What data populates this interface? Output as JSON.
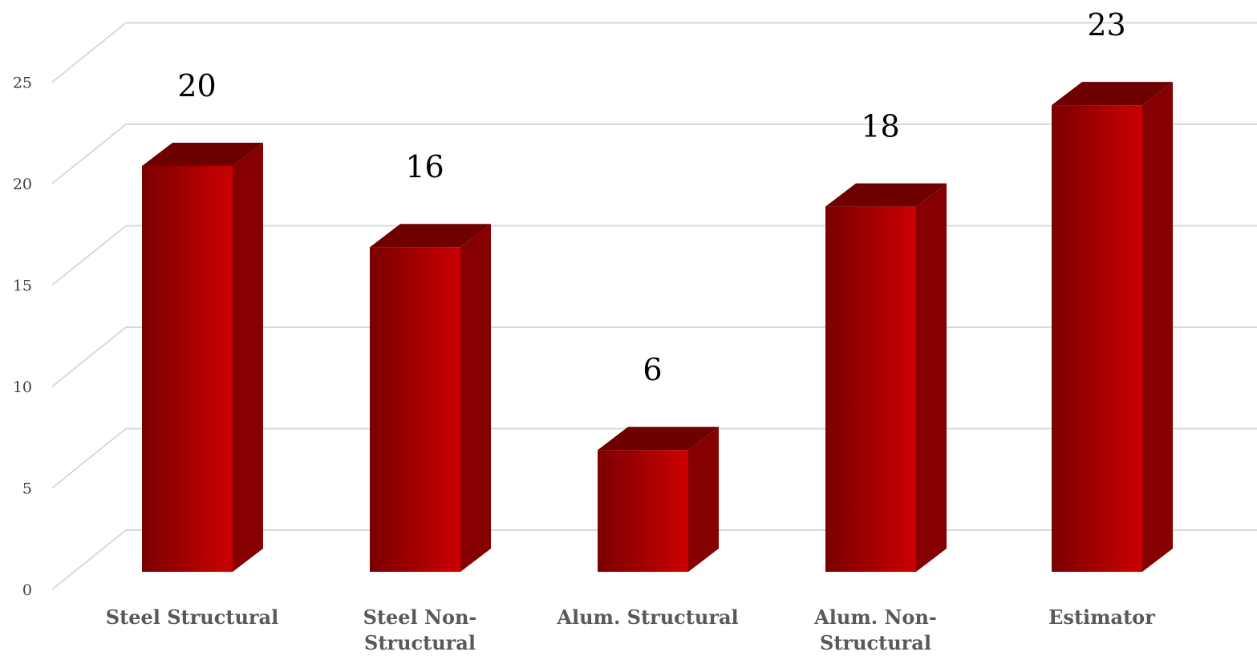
{
  "chart_data": {
    "type": "bar",
    "style": "3d-column",
    "categories": [
      "Steel Structural",
      "Steel Non-Structural",
      "Alum. Structural",
      "Alum. Non-Structural",
      "Estimator"
    ],
    "category_lines": [
      [
        "Steel Structural"
      ],
      [
        "Steel Non-",
        "Structural"
      ],
      [
        "Alum. Structural"
      ],
      [
        "Alum. Non-",
        "Structural"
      ],
      [
        "Estimator"
      ]
    ],
    "values": [
      20,
      16,
      6,
      18,
      23
    ],
    "data_labels": [
      "20",
      "16",
      "6",
      "18",
      "23"
    ],
    "yticks": [
      "0",
      "5",
      "10",
      "15",
      "20",
      "25"
    ],
    "ylim": [
      0,
      25
    ],
    "title": "",
    "xlabel": "",
    "ylabel": "",
    "grid": true,
    "legend": "none",
    "colors": {
      "bar_dark": "#7a0000",
      "bar_light": "#cc0000",
      "bar_side": "#860000",
      "bar_top": "#6e0000",
      "grid": "#d9d9d9"
    }
  }
}
